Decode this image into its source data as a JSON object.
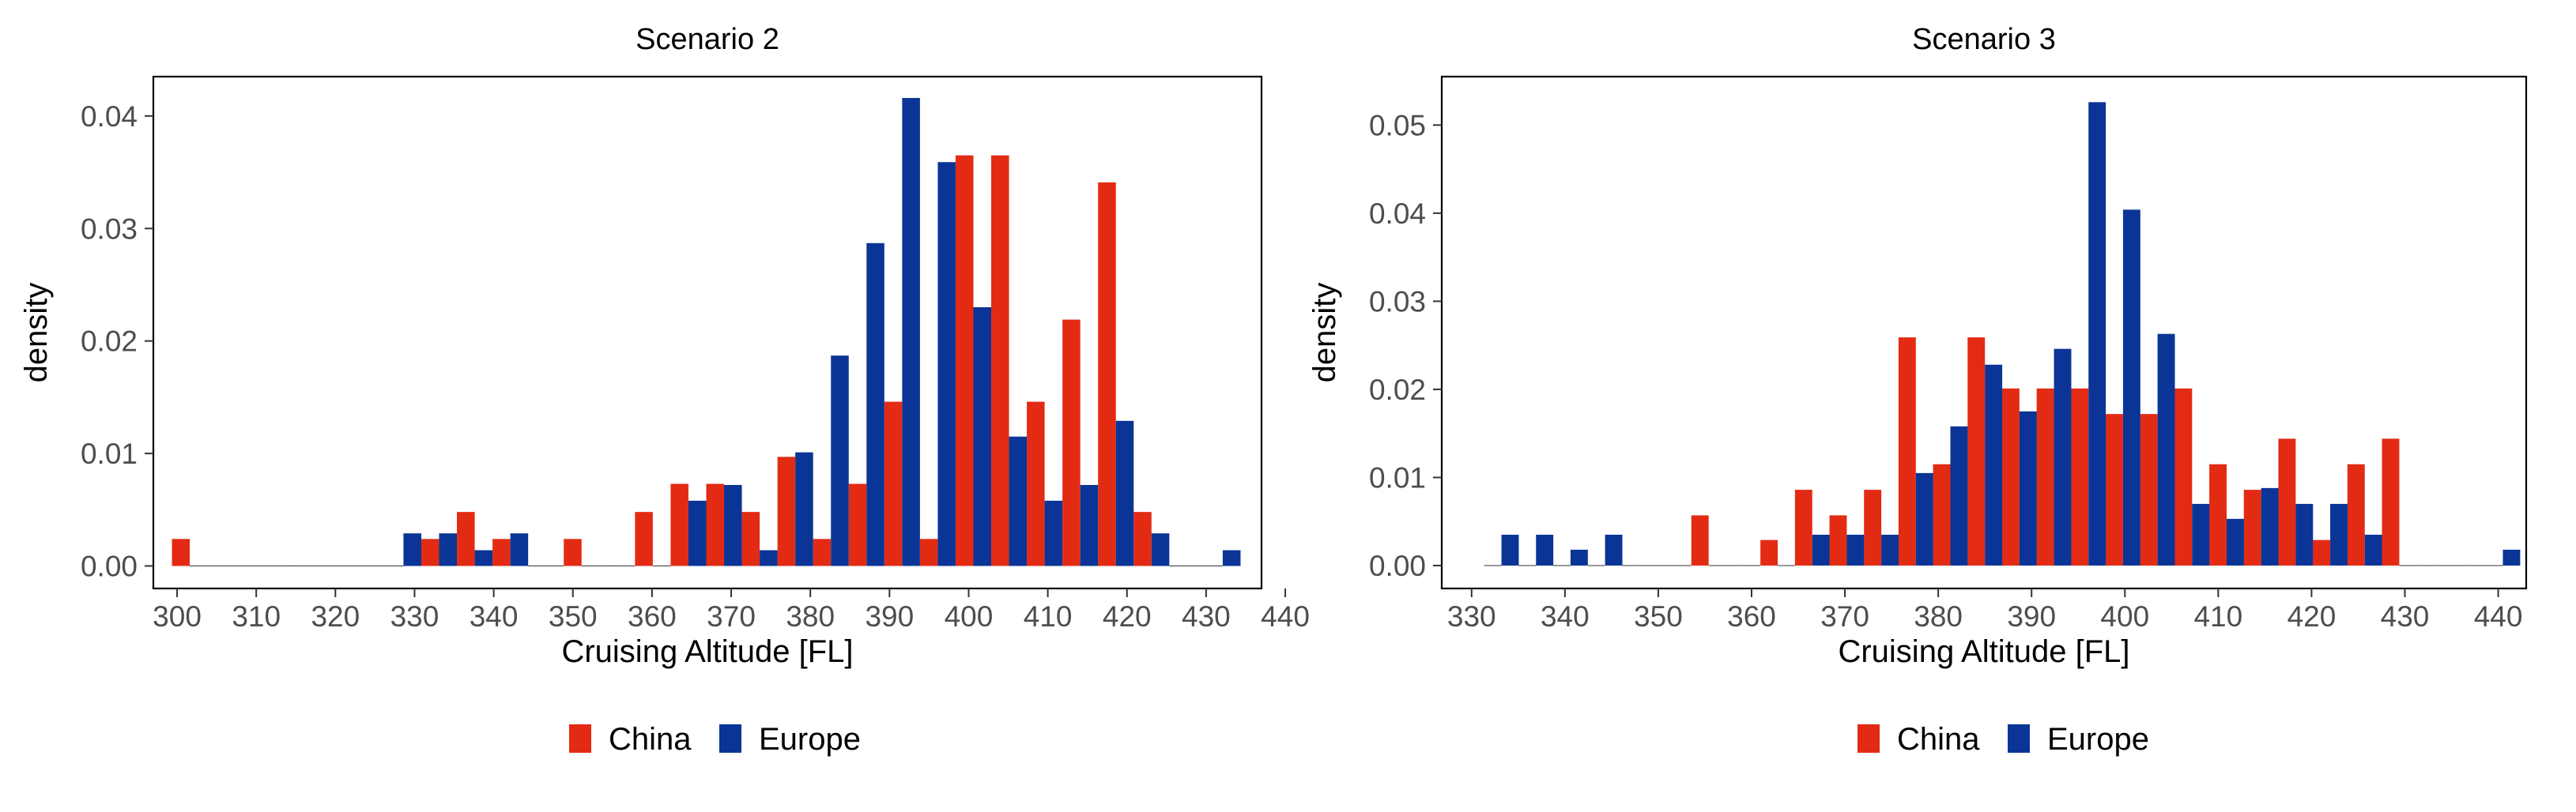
{
  "chart_data": [
    {
      "type": "bar",
      "title": "Scenario 2",
      "xlabel": "Cruising Altitude [FL]",
      "ylabel": "density",
      "xlim": [
        297,
        437
      ],
      "ylim": [
        -0.002,
        0.0435
      ],
      "x_ticks": [
        300,
        310,
        320,
        330,
        340,
        350,
        360,
        370,
        380,
        390,
        400,
        410,
        420,
        430,
        440
      ],
      "y_ticks": [
        0.0,
        0.01,
        0.02,
        0.03,
        0.04
      ],
      "y_tick_labels": [
        "0.00",
        "0.01",
        "0.02",
        "0.03",
        "0.04"
      ],
      "bin_width": 4.5,
      "bins": [
        301.6,
        306.1,
        310.6,
        315.1,
        319.6,
        324.1,
        328.6,
        333.1,
        337.6,
        342.1,
        346.6,
        351.1,
        355.6,
        360.1,
        364.6,
        369.1,
        373.6,
        378.1,
        382.6,
        387.1,
        391.6,
        396.1,
        400.6,
        405.1,
        409.6,
        414.1,
        418.6,
        423.1,
        427.6,
        432.1
      ],
      "series": [
        {
          "name": "China",
          "color": "#e32b14",
          "values": [
            0.0024,
            0,
            0,
            0,
            0,
            0,
            0,
            0.0024,
            0.0048,
            0.0024,
            0,
            0.0024,
            0,
            0.0048,
            0.0073,
            0.0073,
            0.0048,
            0.0097,
            0.0024,
            0.0073,
            0.0146,
            0.0024,
            0.0365,
            0.0365,
            0.0146,
            0.0219,
            0.0341,
            0.0048,
            0,
            0
          ]
        },
        {
          "name": "Europe",
          "color": "#0a3596",
          "values": [
            0,
            0,
            0,
            0,
            0,
            0,
            0.0029,
            0.0029,
            0.0014,
            0.0029,
            0,
            0,
            0,
            0,
            0.0058,
            0.0072,
            0.0014,
            0.0101,
            0.0187,
            0.0287,
            0.0416,
            0.0359,
            0.023,
            0.0115,
            0.0058,
            0.0072,
            0.0129,
            0.0029,
            0,
            0.0014
          ]
        }
      ],
      "legend": "bottom"
    },
    {
      "type": "bar",
      "title": "Scenario 3",
      "xlabel": "Cruising Altitude [FL]",
      "ylabel": "density",
      "xlim": [
        326.8,
        443
      ],
      "ylim": [
        -0.0026,
        0.0555
      ],
      "x_ticks": [
        330,
        340,
        350,
        360,
        370,
        380,
        390,
        400,
        410,
        420,
        430,
        440
      ],
      "y_ticks": [
        0.0,
        0.01,
        0.02,
        0.03,
        0.04,
        0.05
      ],
      "y_tick_labels": [
        "0.00",
        "0.01",
        "0.02",
        "0.03",
        "0.04",
        "0.05"
      ],
      "bin_width": 3.71,
      "bins": [
        333.2,
        336.9,
        340.6,
        344.3,
        348.0,
        351.7,
        355.4,
        359.1,
        362.8,
        366.5,
        370.2,
        373.9,
        377.6,
        381.3,
        385.0,
        388.7,
        392.4,
        396.1,
        399.8,
        403.5,
        407.2,
        410.9,
        414.6,
        418.3,
        422.0,
        425.7,
        429.4,
        433.1,
        436.8,
        440.5
      ],
      "series": [
        {
          "name": "China",
          "color": "#e32b14",
          "values": [
            0,
            0,
            0,
            0,
            0,
            0,
            0.0057,
            0,
            0.0029,
            0.0086,
            0.0057,
            0.0086,
            0.0259,
            0.0115,
            0.0259,
            0.0201,
            0.0201,
            0.0201,
            0.0172,
            0.0172,
            0.0201,
            0.0115,
            0.0086,
            0.0144,
            0.0029,
            0.0115,
            0.0144,
            0,
            0,
            0
          ]
        },
        {
          "name": "Europe",
          "color": "#0a3596",
          "values": [
            0.0035,
            0.0035,
            0.0018,
            0.0035,
            0,
            0,
            0,
            0,
            0,
            0.0035,
            0.0035,
            0.0035,
            0.0105,
            0.0158,
            0.0228,
            0.0175,
            0.0246,
            0.0526,
            0.0404,
            0.0263,
            0.007,
            0.0053,
            0.0088,
            0.007,
            0.007,
            0.0035,
            0,
            0,
            0,
            0.0018
          ]
        }
      ],
      "legend": "bottom"
    }
  ]
}
